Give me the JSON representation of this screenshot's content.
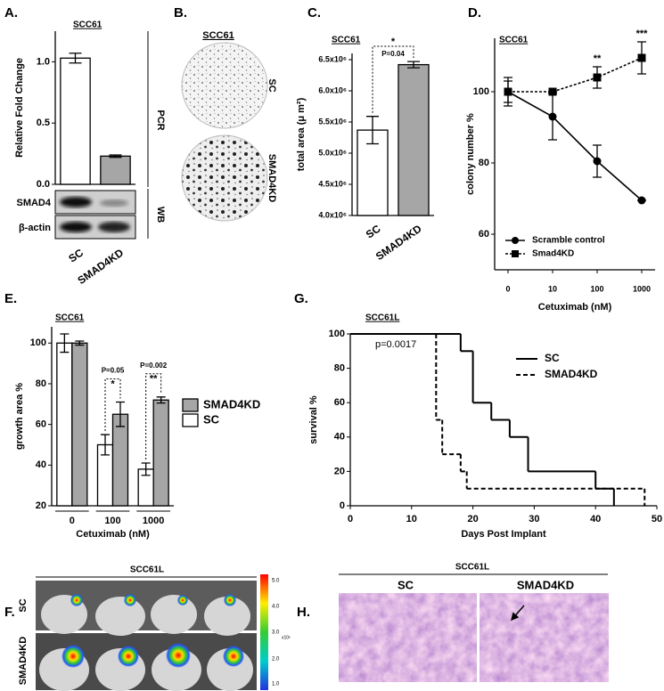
{
  "chart_data": [
    {
      "type": "bar",
      "label": "A.",
      "title": "SCC61",
      "ylabel": "Relative Fold Change",
      "side_label": "PCR",
      "categories": [
        "SC",
        "SMAD4KD"
      ],
      "values": [
        1.03,
        0.23
      ],
      "errors": [
        0.04,
        0.01
      ],
      "colors": [
        "#ffffff",
        "#a6a6a6"
      ],
      "ylim": [
        0,
        1.25
      ],
      "yticks": [
        {
          "value": 0,
          "label": "0.0"
        },
        {
          "value": 0.5,
          "label": "0.5"
        },
        {
          "value": 1,
          "label": "1.0"
        }
      ]
    },
    {
      "type": "bar",
      "label": "C.",
      "title": "SCC61",
      "ylabel": "total area (μ m²)",
      "categories": [
        "SC",
        "SMAD4KD"
      ],
      "values": [
        5370000,
        6420000
      ],
      "errors": [
        220000,
        50000
      ],
      "colors": [
        "#ffffff",
        "#a6a6a6"
      ],
      "ylim": [
        4000000,
        6600000
      ],
      "yticks": [
        {
          "value": 4000000,
          "label": "4.0x10⁶"
        },
        {
          "value": 4500000,
          "label": "4.5x10⁶"
        },
        {
          "value": 5000000,
          "label": "5.0x10⁶"
        },
        {
          "value": 5500000,
          "label": "5.5x10⁶"
        },
        {
          "value": 6000000,
          "label": "6.0x10⁶"
        },
        {
          "value": 6500000,
          "label": "6.5x10⁶"
        }
      ],
      "annotations": [
        "*",
        "P=0.04"
      ]
    },
    {
      "type": "line",
      "label": "D.",
      "title": "SCC61",
      "xlabel": "Cetuximab (nM)",
      "ylabel": "colony number  %",
      "categories": [
        "0",
        "10",
        "100",
        "1000"
      ],
      "series": [
        {
          "name": "Scramble control",
          "marker": "circle",
          "color": "#000000",
          "values": [
            100,
            93,
            80.5,
            69.5
          ],
          "errors": [
            3,
            6.5,
            4.5,
            0
          ]
        },
        {
          "name": "Smad4KD",
          "marker": "square",
          "color": "#000000",
          "dashed": true,
          "values": [
            100,
            100,
            104,
            109.5
          ],
          "errors": [
            4,
            0,
            3,
            4.5
          ]
        }
      ],
      "ylim": [
        50,
        115
      ],
      "yticks": [
        60,
        80,
        100
      ],
      "annotations": [
        "**",
        "***"
      ]
    },
    {
      "type": "grouped_bar",
      "label": "E.",
      "title": "SCC61",
      "xlabel": "Cetuximab (nM)",
      "ylabel": "growth area %",
      "categories": [
        "0",
        "100",
        "1000"
      ],
      "series": [
        {
          "name": "SC",
          "color": "#ffffff",
          "values": [
            100,
            50,
            38
          ],
          "errors": [
            4.5,
            5,
            3
          ]
        },
        {
          "name": "SMAD4KD",
          "color": "#a6a6a6",
          "values": [
            100,
            65,
            72
          ],
          "errors": [
            1,
            6,
            1.5
          ]
        }
      ],
      "ylim": [
        20,
        108
      ],
      "yticks": [
        20,
        40,
        60,
        80,
        100
      ],
      "annotations": [
        "P=0.05",
        "*",
        "P=0.002",
        "**"
      ]
    },
    {
      "type": "step",
      "label": "G.",
      "title": "SCC61L",
      "xlabel": "Days Post Implant",
      "ylabel": "survival %",
      "series": [
        {
          "name": "SC",
          "color": "#000000",
          "x": [
            0,
            18,
            20,
            23,
            26,
            29,
            40,
            43
          ],
          "values": [
            100,
            90,
            60,
            50,
            40,
            20,
            10,
            0
          ]
        },
        {
          "name": "SMAD4KD",
          "color": "#000000",
          "dashed": true,
          "x": [
            0,
            14,
            15,
            18,
            19,
            48
          ],
          "values": [
            100,
            50,
            30,
            20,
            10,
            0
          ]
        }
      ],
      "xlim": [
        0,
        50
      ],
      "xticks": [
        0,
        10,
        20,
        30,
        40,
        50
      ],
      "ylim": [
        0,
        100
      ],
      "yticks": [
        0,
        20,
        40,
        60,
        80,
        100
      ],
      "annotations": [
        "p=0.0017"
      ]
    }
  ],
  "panels": {
    "blot": {
      "label": "WB",
      "rows": [
        "SMAD4",
        "β-actin"
      ]
    },
    "B": {
      "label": "B.",
      "title": "SCC61",
      "rows": [
        "SC",
        "SMAD4KD"
      ]
    },
    "F": {
      "label": "F.",
      "title": "SCC61L",
      "rows": [
        "SC",
        "SMAD4KD"
      ],
      "scale_ticks": [
        "5.0",
        "4.0",
        "3.0",
        "2.0",
        "1.0"
      ],
      "scale_unit": "x10⁶"
    },
    "H": {
      "label": "H.",
      "title": "SCC61L",
      "columns": [
        "SC",
        "SMAD4KD"
      ]
    }
  }
}
